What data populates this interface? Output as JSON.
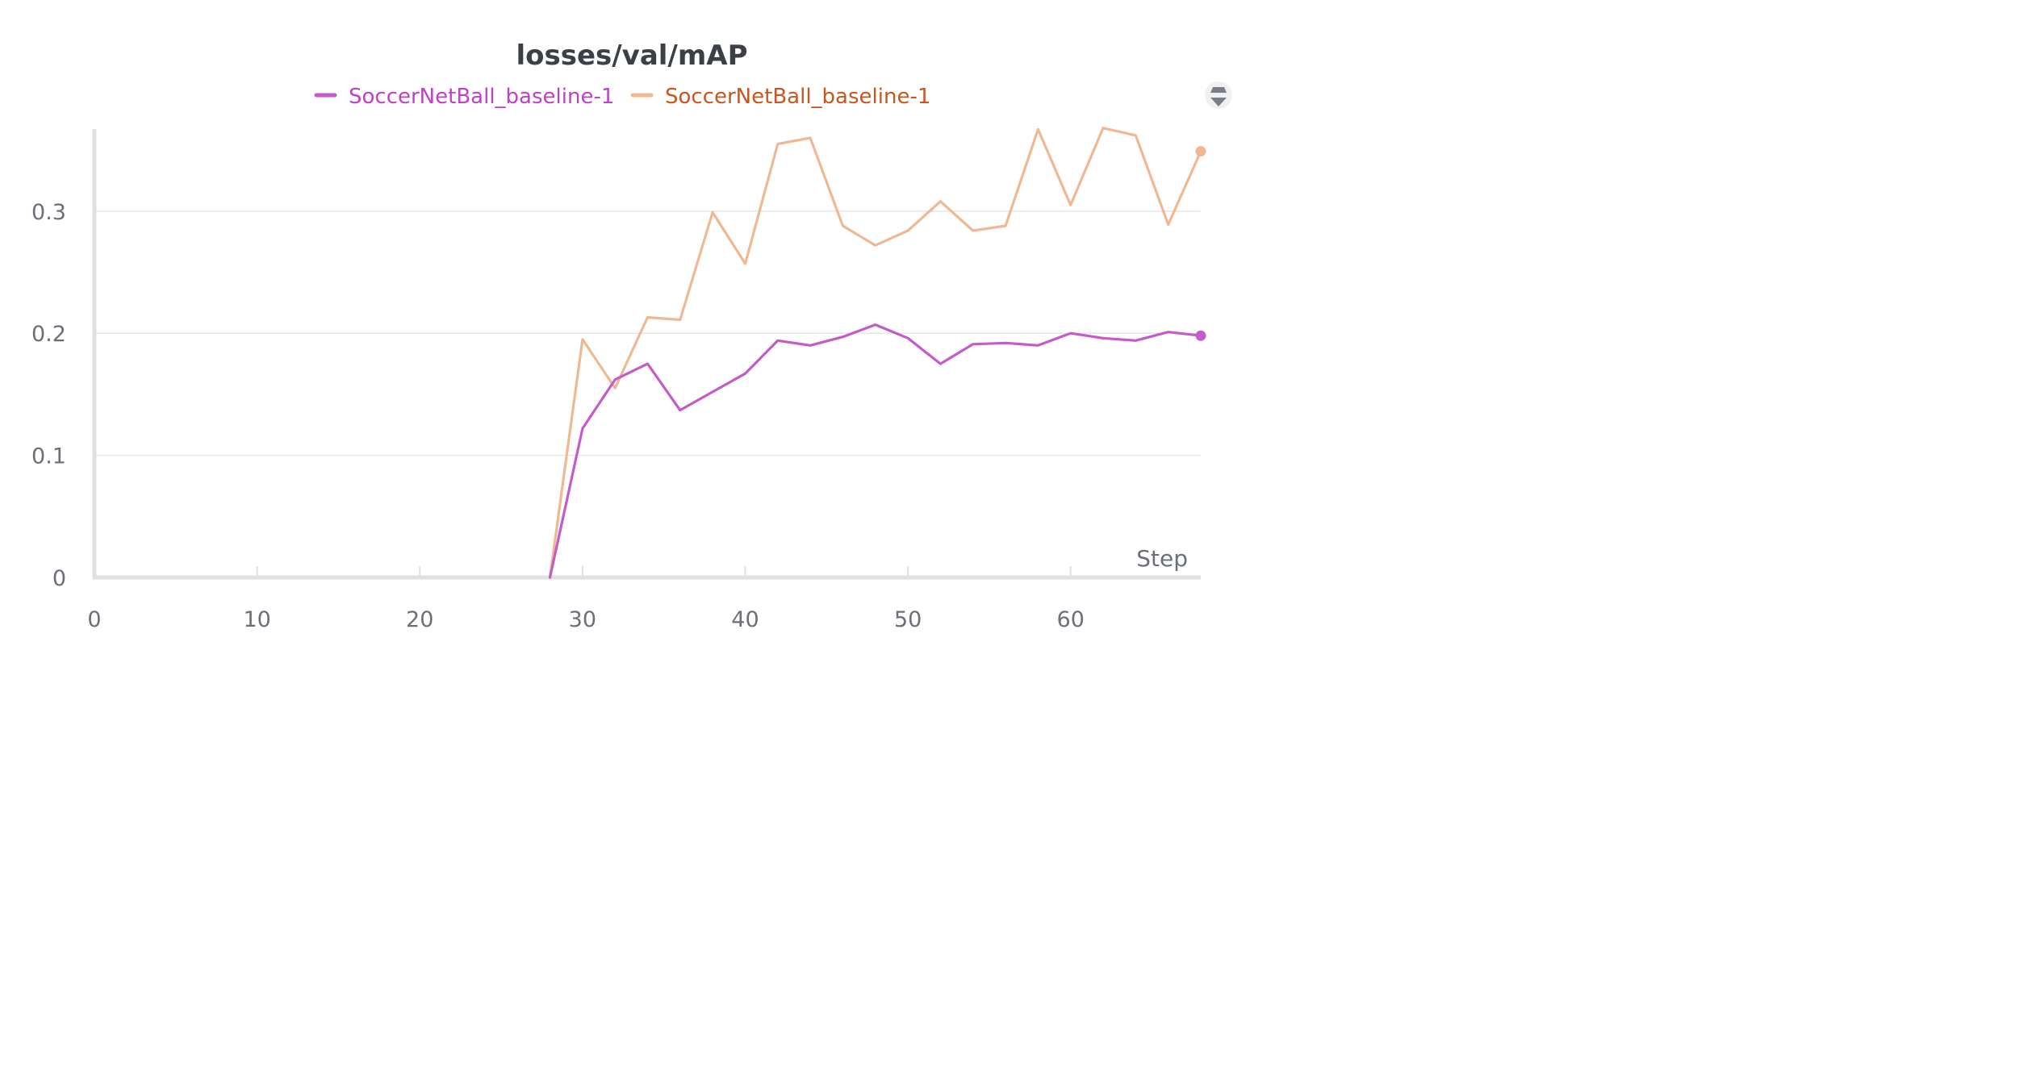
{
  "chart_data": {
    "type": "line",
    "title": "losses/val/mAP",
    "xlabel": "Step",
    "ylabel": "",
    "xlim": [
      0,
      68
    ],
    "ylim": [
      0,
      0.37
    ],
    "x_ticks": [
      0,
      10,
      20,
      30,
      40,
      50,
      60
    ],
    "x_tick_labels": [
      "0",
      "10",
      "20",
      "30",
      "40",
      "50",
      "60"
    ],
    "y_ticks": [
      0,
      0.1,
      0.2,
      0.3
    ],
    "y_tick_labels": [
      "0",
      "0.1",
      "0.2",
      "0.3"
    ],
    "grid": true,
    "legend_position": "top-center",
    "series": [
      {
        "name": "SoccerNetBall_baseline-1",
        "color": "#c45bc9",
        "legend_text_color": "#c040c6",
        "x": [
          28,
          30,
          32,
          34,
          36,
          38,
          40,
          42,
          44,
          46,
          48,
          50,
          52,
          54,
          56,
          58,
          60,
          62,
          64,
          66,
          68
        ],
        "y": [
          0,
          0.122,
          0.162,
          0.175,
          0.137,
          0.152,
          0.167,
          0.194,
          0.19,
          0.197,
          0.207,
          0.196,
          0.175,
          0.191,
          0.192,
          0.19,
          0.2,
          0.196,
          0.194,
          0.201,
          0.198
        ]
      },
      {
        "name": "SoccerNetBall_baseline-1",
        "color": "#efb893",
        "legend_text_color": "#c8561e",
        "x": [
          28,
          30,
          32,
          34,
          36,
          38,
          40,
          42,
          44,
          46,
          48,
          50,
          52,
          54,
          56,
          58,
          60,
          62,
          64,
          66,
          68
        ],
        "y": [
          0,
          0.195,
          0.155,
          0.213,
          0.211,
          0.299,
          0.257,
          0.355,
          0.36,
          0.288,
          0.272,
          0.284,
          0.308,
          0.284,
          0.288,
          0.367,
          0.305,
          0.368,
          0.362,
          0.289,
          0.349
        ]
      }
    ]
  },
  "toolbar": {
    "legend_toggle_icon": "legend-toggle-icon"
  }
}
